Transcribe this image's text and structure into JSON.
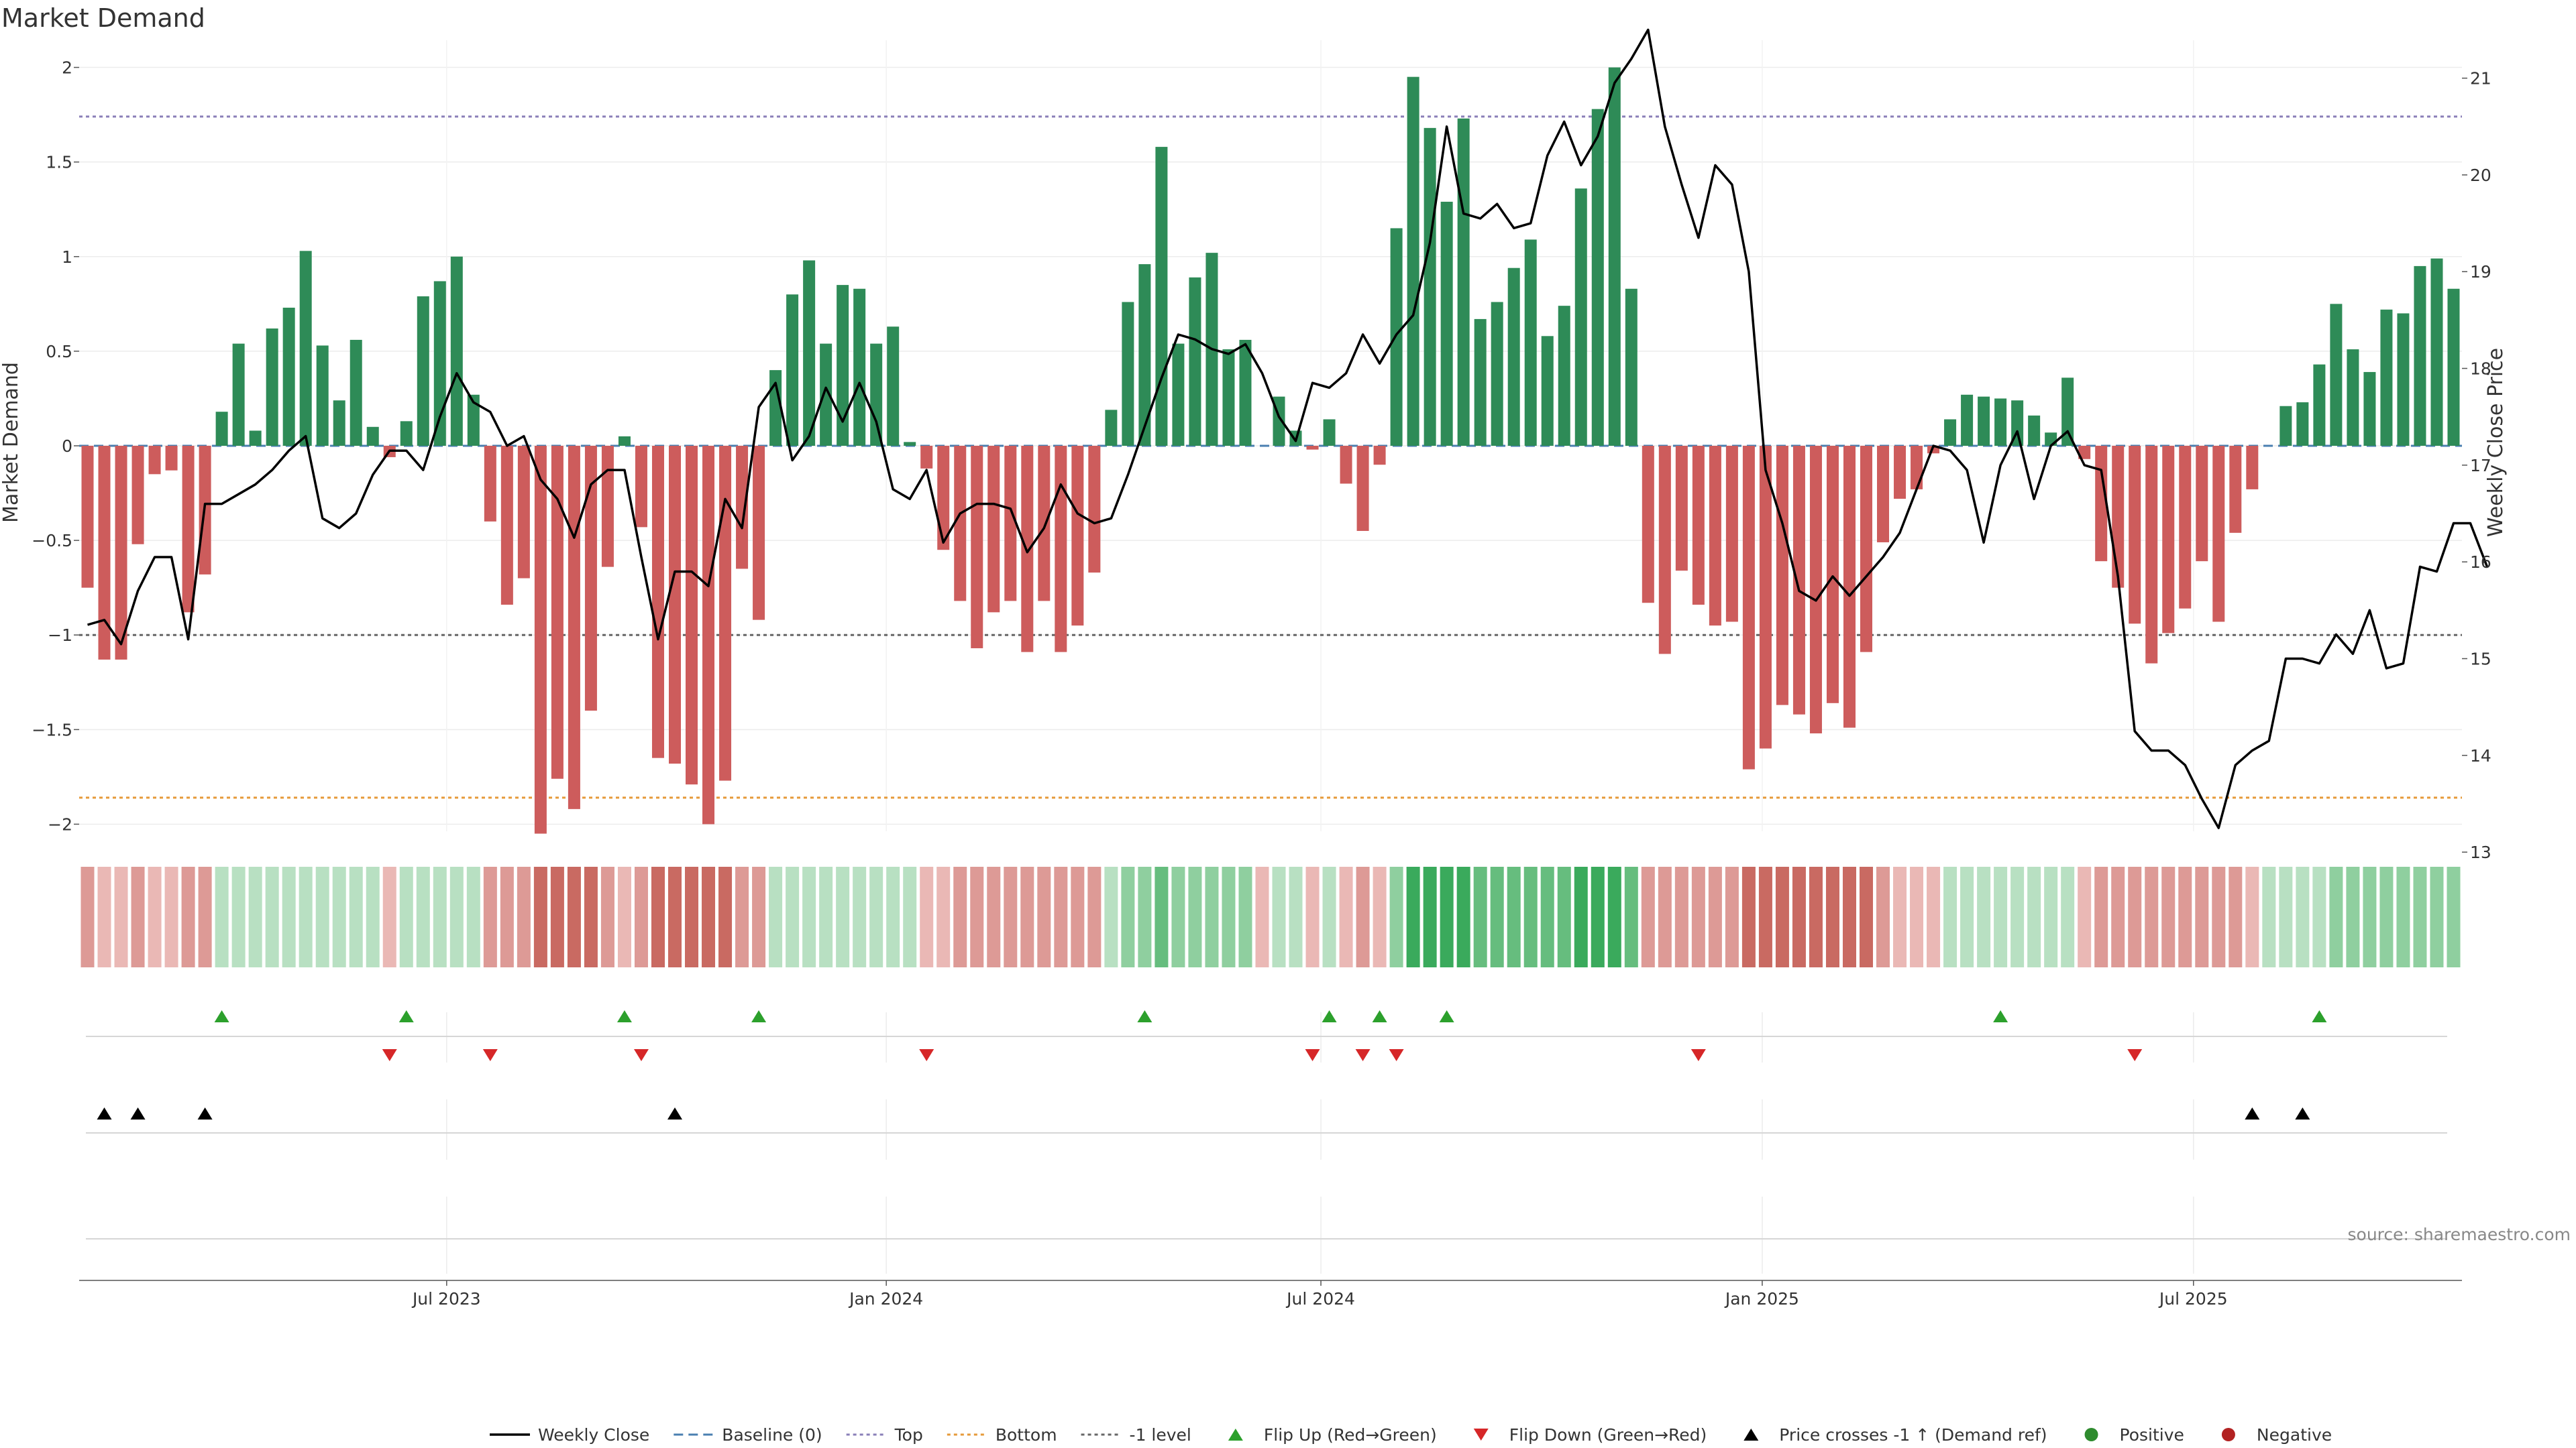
{
  "chart_data": {
    "type": "bar",
    "title": "Market Demand",
    "ylabel": "Market Demand",
    "y2label": "Weekly Close Price",
    "ylim": [
      -2.25,
      2.25
    ],
    "y2lim": [
      12.8,
      21.6
    ],
    "yticks": [
      "2",
      "1.5",
      "1",
      "0.5",
      "0",
      "−0.5",
      "−1",
      "−1.5",
      "−2"
    ],
    "ytick_values": [
      2,
      1.5,
      1,
      0.5,
      0,
      -0.5,
      -1,
      -1.5,
      -2
    ],
    "y2ticks": [
      "21",
      "20",
      "19",
      "18",
      "17",
      "16",
      "15",
      "14",
      "13"
    ],
    "y2tick_values": [
      21,
      20,
      19,
      18,
      17,
      16,
      15,
      14,
      13
    ],
    "xticks": [
      "Jul 2023",
      "Jan 2024",
      "Jul 2024",
      "Jan 2025",
      "Jul 2025"
    ],
    "xtick_index": [
      21.4,
      47.6,
      73.5,
      99.8,
      125.5
    ],
    "reference_lines": [
      {
        "name": "Top",
        "value": 1.74,
        "color": "#8a7fb8"
      },
      {
        "name": "Bottom",
        "value": -1.86,
        "color": "#e69a3a"
      },
      {
        "name": "-1 level",
        "value": -1.0,
        "color": "#666666"
      },
      {
        "name": "Baseline (0)",
        "value": 0,
        "color": "#4a7fb0"
      }
    ],
    "demand": [
      -0.75,
      -1.13,
      -1.13,
      -0.52,
      -0.15,
      -0.13,
      -0.88,
      -0.68,
      0.18,
      0.54,
      0.08,
      0.62,
      0.73,
      1.03,
      0.53,
      0.24,
      0.56,
      0.1,
      -0.06,
      0.13,
      0.79,
      0.87,
      1.0,
      0.27,
      -0.4,
      -0.84,
      -0.7,
      -2.05,
      -1.76,
      -1.92,
      -1.4,
      -0.64,
      0.05,
      -0.43,
      -1.65,
      -1.68,
      -1.79,
      -2.0,
      -1.77,
      -0.65,
      -0.92,
      0.4,
      0.8,
      0.98,
      0.54,
      0.85,
      0.83,
      0.54,
      0.63,
      0.02,
      -0.12,
      -0.55,
      -0.82,
      -1.07,
      -0.88,
      -0.82,
      -1.09,
      -0.82,
      -1.09,
      -0.95,
      -0.67,
      0.19,
      0.76,
      0.96,
      1.58,
      0.54,
      0.89,
      1.02,
      0.51,
      0.56,
      0.0,
      0.26,
      0.08,
      -0.02,
      0.14,
      -0.2,
      -0.45,
      -0.1,
      1.15,
      1.95,
      1.68,
      1.29,
      1.73,
      0.67,
      0.76,
      0.94,
      1.09,
      0.58,
      0.74,
      1.36,
      1.78,
      2.0,
      0.83,
      -0.83,
      -1.1,
      -0.66,
      -0.84,
      -0.95,
      -0.93,
      -1.71,
      -1.6,
      -1.37,
      -1.42,
      -1.52,
      -1.36,
      -1.49,
      -1.09,
      -0.51,
      -0.28,
      -0.23,
      -0.04,
      0.14,
      0.27,
      0.26,
      0.25,
      0.24,
      0.16,
      0.07,
      0.36,
      -0.07,
      -0.61,
      -0.75,
      -0.94,
      -1.15,
      -0.99,
      -0.86,
      -0.61,
      -0.93,
      -0.46,
      -0.23,
      0.0,
      0.21,
      0.23,
      0.43,
      0.75,
      0.51,
      0.39,
      0.72,
      0.7,
      0.95,
      0.99,
      0.83
    ],
    "weekly_close": [
      15.35,
      15.4,
      15.15,
      15.7,
      16.05,
      16.05,
      15.2,
      16.6,
      16.6,
      16.7,
      16.8,
      16.95,
      17.15,
      17.3,
      16.45,
      16.35,
      16.5,
      16.9,
      17.15,
      17.15,
      16.95,
      17.5,
      17.95,
      17.65,
      17.55,
      17.2,
      17.3,
      16.85,
      16.65,
      16.25,
      16.8,
      16.95,
      16.95,
      16.05,
      15.2,
      15.9,
      15.9,
      15.75,
      16.65,
      16.35,
      17.6,
      17.85,
      17.05,
      17.3,
      17.8,
      17.45,
      17.85,
      17.45,
      16.75,
      16.65,
      16.95,
      16.2,
      16.5,
      16.6,
      16.6,
      16.55,
      16.1,
      16.35,
      16.8,
      16.5,
      16.4,
      16.45,
      16.9,
      17.4,
      17.9,
      18.35,
      18.3,
      18.2,
      18.15,
      18.25,
      17.95,
      17.5,
      17.25,
      17.85,
      17.8,
      17.95,
      18.35,
      18.05,
      18.35,
      18.55,
      19.3,
      20.5,
      19.6,
      19.55,
      19.7,
      19.45,
      19.5,
      20.2,
      20.55,
      20.1,
      20.4,
      20.95,
      21.2,
      21.5,
      20.5,
      19.9,
      19.35,
      20.1,
      19.9,
      19.0,
      16.95,
      16.4,
      15.7,
      15.6,
      15.85,
      15.65,
      15.85,
      16.05,
      16.3,
      16.75,
      17.2,
      17.15,
      16.95,
      16.2,
      17.0,
      17.35,
      16.65,
      17.2,
      17.35,
      17.0,
      16.95,
      15.85,
      14.25,
      14.05,
      14.05,
      13.9,
      13.55,
      13.25,
      13.9,
      14.05,
      14.15,
      15.0,
      15.0,
      14.95,
      15.25,
      15.05,
      15.5,
      14.9,
      14.95,
      15.95,
      15.9,
      16.4,
      16.4,
      15.95
    ],
    "heat_shade": [
      -2,
      -1,
      -1,
      -2,
      -1,
      -1,
      -2,
      -2,
      1,
      1,
      1,
      1,
      1,
      1,
      1,
      1,
      1,
      1,
      -1,
      1,
      1,
      1,
      1,
      1,
      -2,
      -2,
      -2,
      -3,
      -3,
      -3,
      -3,
      -2,
      -1,
      -2,
      -3,
      -3,
      -3,
      -3,
      -3,
      -2,
      -2,
      1,
      1,
      1,
      1,
      1,
      1,
      1,
      1,
      1,
      -1,
      -1,
      -2,
      -2,
      -2,
      -2,
      -2,
      -2,
      -2,
      -2,
      -2,
      1,
      2,
      2,
      3,
      2,
      2,
      2,
      2,
      2,
      -1,
      1,
      1,
      -1,
      1,
      -1,
      -2,
      -1,
      2,
      4,
      4,
      4,
      4,
      3,
      3,
      3,
      3,
      3,
      3,
      4,
      4,
      4,
      3,
      -2,
      -2,
      -2,
      -2,
      -2,
      -2,
      -3,
      -3,
      -3,
      -3,
      -3,
      -3,
      -3,
      -3,
      -2,
      -1,
      -1,
      -1,
      1,
      1,
      1,
      1,
      1,
      1,
      1,
      1,
      -1,
      -2,
      -2,
      -2,
      -2,
      -2,
      -2,
      -2,
      -2,
      -2,
      -1,
      1,
      1,
      1,
      1,
      2,
      2,
      2,
      2,
      2,
      2,
      2,
      2
    ],
    "flip_up_index": [
      8,
      19,
      32,
      40,
      63,
      74,
      77,
      81,
      114,
      133
    ],
    "flip_down_index": [
      18,
      24,
      33,
      50,
      73,
      76,
      78,
      96,
      122
    ],
    "price_cross_index": [
      1,
      3,
      7,
      35,
      129,
      132
    ],
    "positive_color": "#2e8b57",
    "negative_color": "#cd5c5c",
    "line_color": "#000000",
    "flip_up_color": "#2ca02c",
    "flip_down_color": "#d62728",
    "cross_color": "#000000",
    "legend": [
      {
        "label": "Weekly Close",
        "symbol": "line"
      },
      {
        "label": "Baseline (0)",
        "symbol": "dash"
      },
      {
        "label": "Top",
        "symbol": "dot"
      },
      {
        "label": "Bottom",
        "symbol": "dot"
      },
      {
        "label": "-1 level",
        "symbol": "dot"
      },
      {
        "label": "Flip Up (Red→Green)",
        "symbol": "tri-up"
      },
      {
        "label": "Flip Down (Green→Red)",
        "symbol": "tri-down"
      },
      {
        "label": "Price crosses -1 ↑ (Demand ref)",
        "symbol": "tri-black"
      },
      {
        "label": "Positive",
        "symbol": "circle"
      },
      {
        "label": "Negative",
        "symbol": "circle"
      }
    ],
    "legend_colors": [
      "#000000",
      "#4a7fb0",
      "#8a7fb8",
      "#e69a3a",
      "#666666",
      "#2ca02c",
      "#d62728",
      "#000000",
      "#2e8b2e",
      "#b22222"
    ],
    "source": "source: sharemaestro.com"
  }
}
